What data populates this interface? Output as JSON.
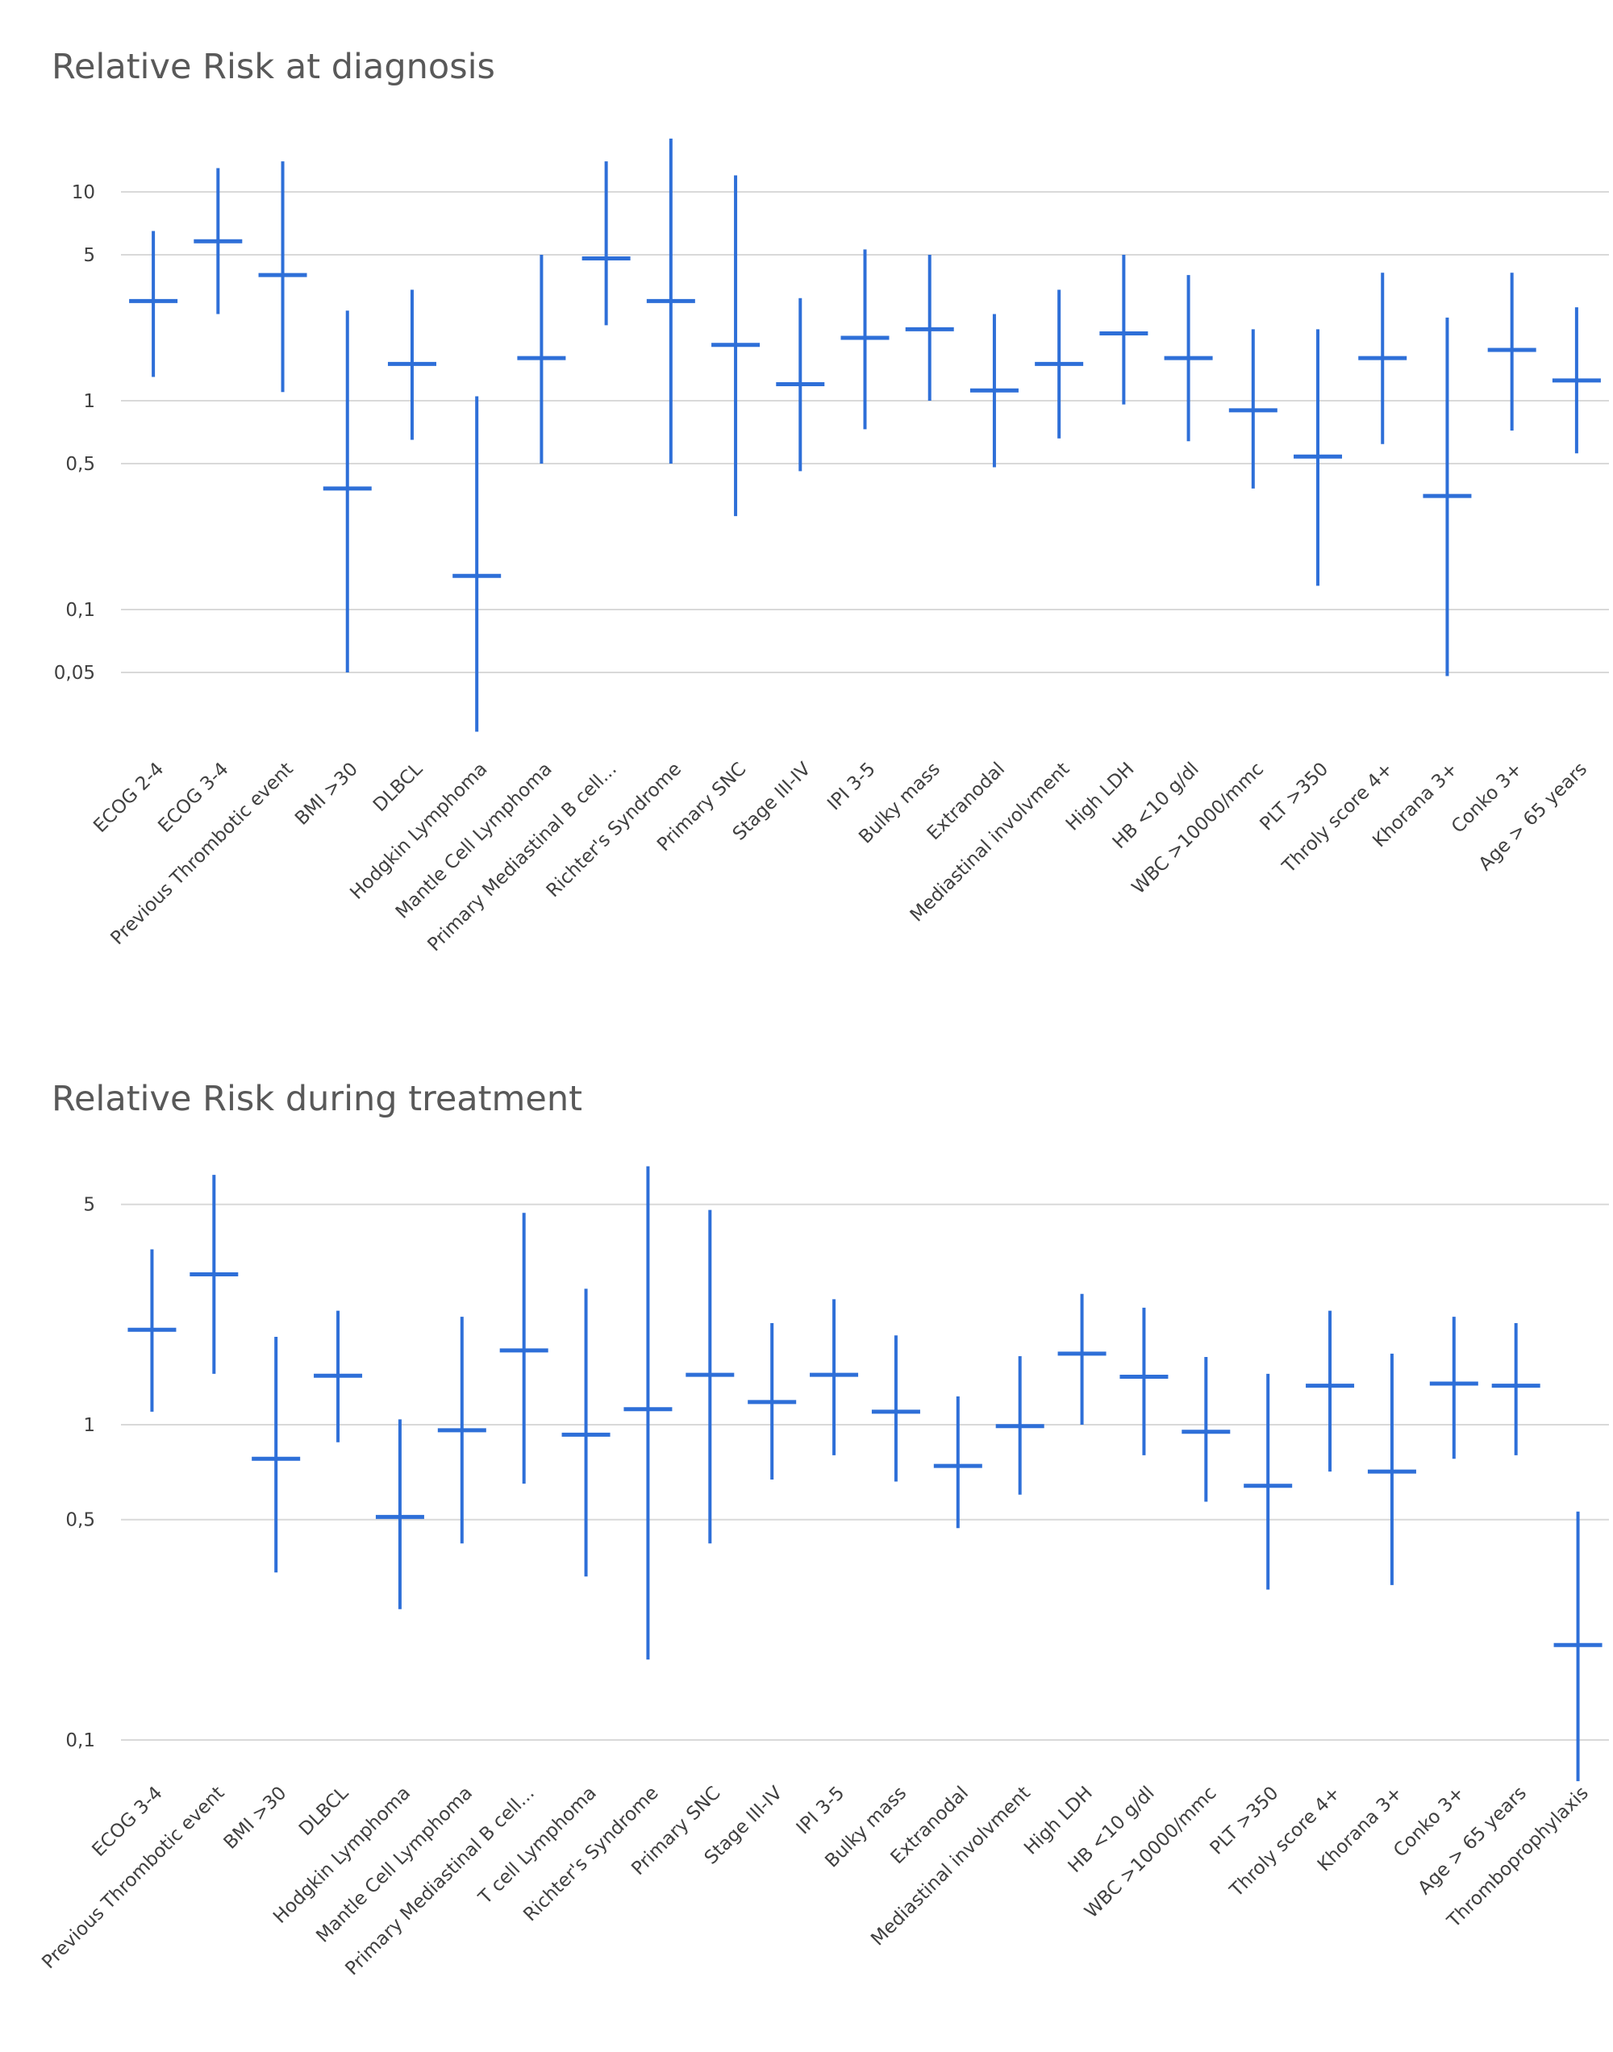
{
  "accent_color": "#2e6fd8",
  "chart_data": [
    {
      "type": "error-bar",
      "title": "Relative Risk at diagnosis",
      "yscale": "log",
      "ylim": [
        0.025,
        20
      ],
      "yticks": [
        {
          "value": 0.05,
          "label": "0,05"
        },
        {
          "value": 0.1,
          "label": "0,1"
        },
        {
          "value": 0.5,
          "label": "0,5"
        },
        {
          "value": 1,
          "label": "1"
        },
        {
          "value": 5,
          "label": "5"
        },
        {
          "value": 10,
          "label": "10"
        }
      ],
      "grid": true,
      "categories": [
        "ECOG 2-4",
        "ECOG 3-4",
        "Previous Thrombotic event",
        "BMI >30",
        "DLBCL",
        "Hodgkin Lymphoma",
        "Mantle Cell Lymphoma",
        "Primary Mediastinal B cell...",
        "Richter's Syndrome",
        "Primary SNC",
        "Stage III-IV",
        "IPI 3-5",
        "Bulky mass",
        "Extranodal",
        "Mediastinal involvment",
        "High LDH",
        "HB <10 g/dl",
        "WBC >10000/mmc",
        "PLT >350",
        "Throly score 4+",
        "Khorana 3+",
        "Conko 3+",
        "Age > 65 years"
      ],
      "values": [
        3.0,
        5.8,
        4.0,
        0.38,
        1.5,
        0.145,
        1.6,
        4.8,
        3.0,
        1.85,
        1.2,
        2.0,
        2.2,
        1.12,
        1.5,
        2.1,
        1.6,
        0.9,
        0.54,
        1.6,
        0.35,
        1.75,
        1.25
      ],
      "lower": [
        1.3,
        2.6,
        1.1,
        0.05,
        0.65,
        0.026,
        0.5,
        2.3,
        0.5,
        0.28,
        0.46,
        0.73,
        1.0,
        0.48,
        0.66,
        0.96,
        0.64,
        0.38,
        0.13,
        0.62,
        0.048,
        0.72,
        0.56
      ],
      "upper": [
        6.5,
        13.0,
        14.0,
        2.7,
        3.4,
        1.05,
        5.0,
        14.0,
        18.0,
        12.0,
        3.1,
        5.3,
        5.0,
        2.6,
        3.4,
        5.0,
        4.0,
        2.2,
        2.2,
        4.1,
        2.5,
        4.1,
        2.8
      ]
    },
    {
      "type": "error-bar",
      "title": "Relative Risk during treatment",
      "yscale": "log",
      "ylim": [
        0.075,
        8
      ],
      "yticks": [
        {
          "value": 0.1,
          "label": "0,1"
        },
        {
          "value": 0.5,
          "label": "0,5"
        },
        {
          "value": 1,
          "label": "1"
        },
        {
          "value": 5,
          "label": "5"
        }
      ],
      "grid": true,
      "categories": [
        "ECOG 3-4",
        "Previous Thrombotic event",
        "BMI >30",
        "DLBCL",
        "Hodgkin Lymphoma",
        "Mantle Cell Lymphoma",
        "Primary Mediastinal B cell...",
        "T cell Lymphoma",
        "Richter's Syndrome",
        "Primary SNC",
        "Stage III-IV",
        "IPI 3-5",
        "Bulky mass",
        "Extranodal",
        "Mediastinal involvment",
        "High LDH",
        "HB <10 g/dl",
        "WBC >10000/mmc",
        "PLT >350",
        "Throly score 4+",
        "Khorana 3+",
        "Conko 3+",
        "Age > 65 years",
        "Thromboprophylaxis"
      ],
      "values": [
        2.0,
        3.0,
        0.78,
        1.43,
        0.51,
        0.96,
        1.72,
        0.93,
        1.12,
        1.44,
        1.18,
        1.44,
        1.1,
        0.74,
        0.99,
        1.68,
        1.42,
        0.95,
        0.64,
        1.33,
        0.71,
        1.35,
        1.33,
        0.2
      ],
      "lower": [
        1.1,
        1.45,
        0.34,
        0.88,
        0.26,
        0.42,
        0.65,
        0.33,
        0.18,
        0.42,
        0.67,
        0.8,
        0.66,
        0.47,
        0.6,
        1.0,
        0.8,
        0.57,
        0.3,
        0.71,
        0.31,
        0.78,
        0.8,
        0.074
      ],
      "upper": [
        3.6,
        6.2,
        1.9,
        2.3,
        1.04,
        2.2,
        4.7,
        2.7,
        6.6,
        4.8,
        2.1,
        2.5,
        1.92,
        1.23,
        1.65,
        2.6,
        2.35,
        1.64,
        1.45,
        2.3,
        1.68,
        2.2,
        2.1,
        0.53
      ]
    }
  ]
}
